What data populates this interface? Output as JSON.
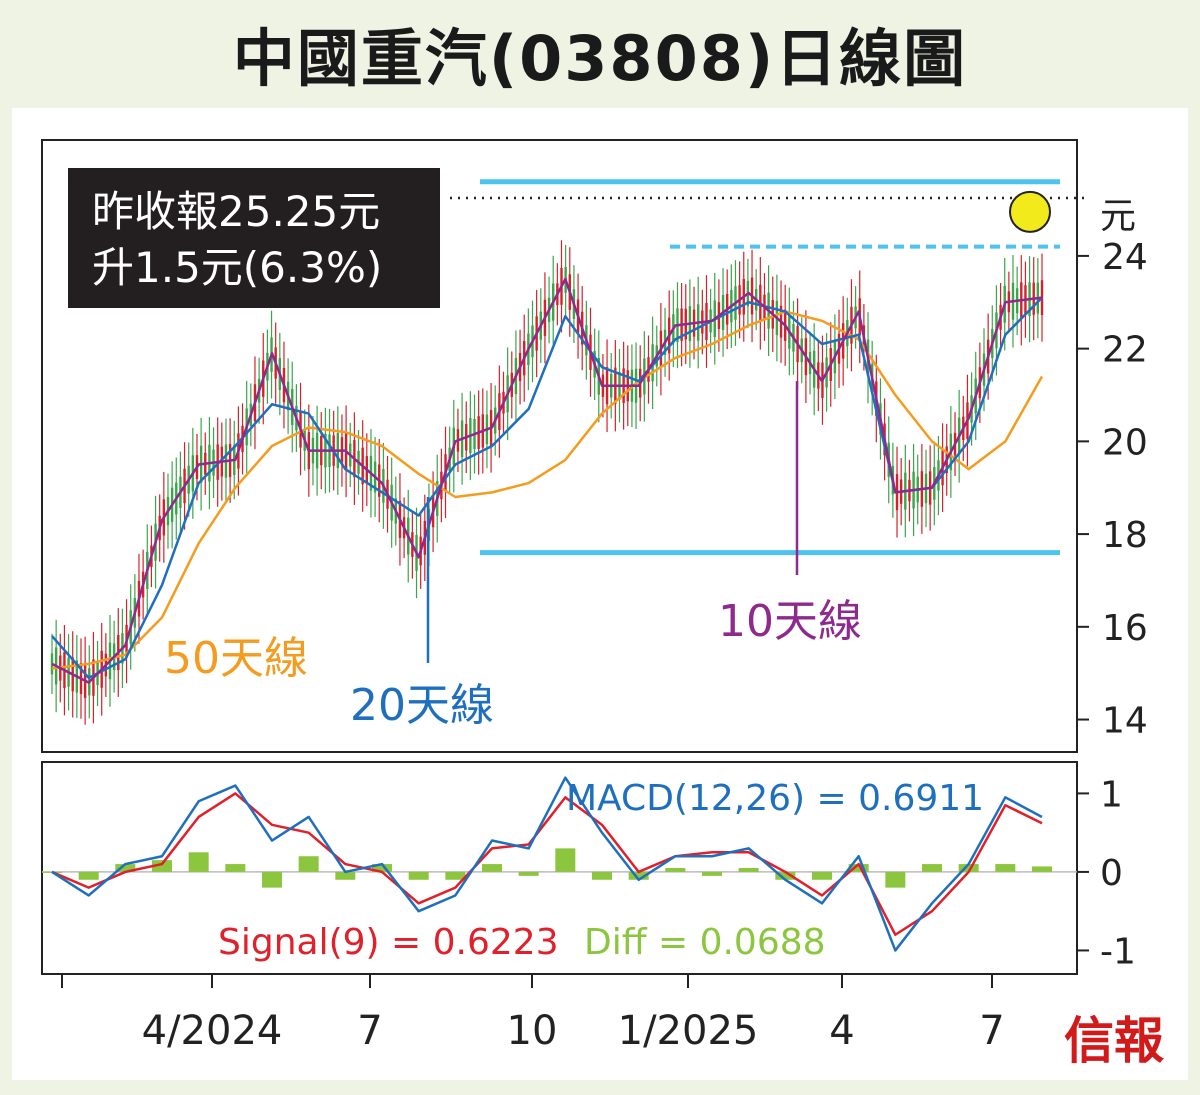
{
  "title": "中國重汽(03808)日線圖",
  "info_box": {
    "line1": "昨收報25.25元",
    "line2": "升1.5元(6.3%)"
  },
  "logo": "信報",
  "colors": {
    "ma50": "#f39c1f",
    "ma20": "#1f6fbf",
    "ma10": "#8e2a8e",
    "candle_up": "#3aa64a",
    "candle_down": "#d8202a",
    "level_line": "#4fc3f0",
    "macd": "#1f6fbf",
    "signal": "#e0202a",
    "diff": "#8cc63f",
    "highlight": "#f2ea1b"
  },
  "chart_data": [
    {
      "type": "line",
      "panel": "price",
      "x_ticks": [
        "4/2024",
        "7",
        "10",
        "1/2025",
        "4",
        "7"
      ],
      "y_unit": "元",
      "y_ticks": [
        14,
        16,
        18,
        20,
        22,
        24
      ],
      "ylim": [
        13.3,
        26.5
      ],
      "last_close": 25.25,
      "resistance_levels": [
        25.6,
        24.2
      ],
      "support_level": 17.6,
      "series_labels": {
        "ma50": "50天線",
        "ma20": "20天線",
        "ma10": "10天線"
      },
      "ma50": [
        15.1,
        15.2,
        15.4,
        16.2,
        17.8,
        19.0,
        19.9,
        20.3,
        20.2,
        19.9,
        19.3,
        18.8,
        18.9,
        19.1,
        19.6,
        20.6,
        21.3,
        21.8,
        22.1,
        22.5,
        22.8,
        22.6,
        22.2,
        21.0,
        20.0,
        19.4,
        20.0,
        21.4
      ],
      "ma20": [
        15.8,
        14.9,
        15.3,
        16.9,
        19.1,
        19.9,
        20.8,
        20.6,
        19.4,
        18.9,
        18.4,
        19.5,
        19.9,
        20.7,
        22.7,
        21.6,
        21.3,
        22.2,
        22.6,
        23.0,
        22.8,
        22.1,
        22.3,
        18.9,
        19.0,
        20.0,
        22.3,
        23.1
      ],
      "ma10": [
        15.2,
        14.8,
        15.6,
        18.3,
        19.5,
        19.6,
        21.9,
        19.8,
        19.8,
        19.1,
        17.5,
        20.0,
        20.3,
        22.0,
        23.5,
        21.2,
        21.2,
        22.5,
        22.6,
        23.2,
        22.5,
        21.3,
        22.8,
        18.9,
        19.0,
        20.5,
        23.0,
        23.1
      ]
    },
    {
      "type": "line",
      "panel": "macd",
      "title": "MACD(12,26) = 0.6911",
      "signal_label": "Signal(9) = 0.6223",
      "diff_label": "Diff = 0.0688",
      "y_ticks": [
        -1,
        0,
        1
      ],
      "ylim": [
        -1.3,
        1.4
      ],
      "macd": [
        0,
        -0.3,
        0.1,
        0.2,
        0.9,
        1.1,
        0.4,
        0.7,
        0,
        0.1,
        -0.5,
        -0.3,
        0.4,
        0.3,
        1.2,
        0.5,
        -0.1,
        0.2,
        0.2,
        0.3,
        -0.1,
        -0.4,
        0.2,
        -1.0,
        -0.4,
        0.1,
        0.95,
        0.7
      ],
      "signal": [
        0,
        -0.2,
        0,
        0.1,
        0.7,
        1.0,
        0.6,
        0.5,
        0.1,
        0,
        -0.4,
        -0.2,
        0.3,
        0.35,
        0.95,
        0.6,
        0,
        0.2,
        0.25,
        0.25,
        0,
        -0.3,
        0.1,
        -0.8,
        -0.5,
        0,
        0.85,
        0.62
      ],
      "diff": [
        0,
        -0.1,
        0.1,
        0.15,
        0.25,
        0.1,
        -0.2,
        0.2,
        -0.1,
        0.1,
        -0.1,
        -0.1,
        0.1,
        -0.05,
        0.3,
        -0.1,
        -0.1,
        0.05,
        -0.05,
        0.05,
        -0.1,
        -0.1,
        0.1,
        -0.2,
        0.1,
        0.1,
        0.1,
        0.07
      ]
    }
  ]
}
